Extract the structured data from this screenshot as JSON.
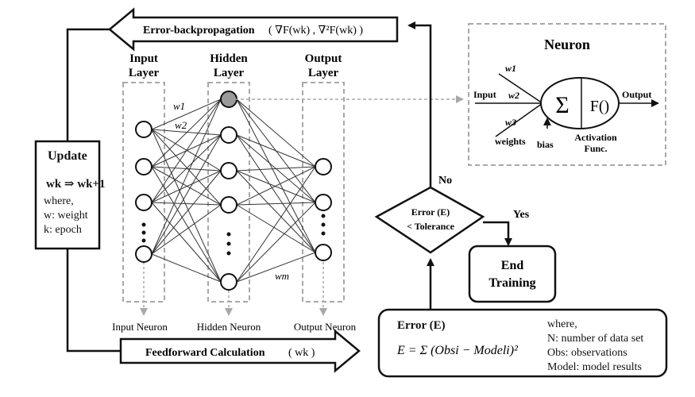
{
  "backprop": {
    "label": "Error-backpropagation",
    "formula": "( ∇F(wk) , ∇²F(wk) )"
  },
  "feedforward": {
    "label": "Feedforward Calculation",
    "formula": "( wk )"
  },
  "layers": {
    "input": [
      "Input",
      "Layer"
    ],
    "hidden": [
      "Hidden",
      "Layer"
    ],
    "output": [
      "Output",
      "Layer"
    ]
  },
  "neuron_labels": {
    "input": "Input Neuron",
    "hidden": "Hidden Neuron",
    "output": "Output Neuron"
  },
  "weights": {
    "w1": "w1",
    "w2": "w2",
    "wm": "wm"
  },
  "update": {
    "title": "Update",
    "rule": "wk ⇒ wk+1",
    "where": "where,",
    "w_def": "w: weight",
    "k_def": "k: epoch"
  },
  "neuron_box": {
    "title": "Neuron",
    "input": "Input",
    "output": "Output",
    "w1": "w1",
    "w2": "w2",
    "w3": "w3",
    "weights": "weights",
    "bias": "bias",
    "sum_symbol": "Σ",
    "activation_symbol": "F()",
    "activation_label": [
      "Activation",
      "Func."
    ]
  },
  "decision": {
    "line1": "Error (E)",
    "line2": "< Tolerance",
    "no": "No",
    "yes": "Yes"
  },
  "end_box": {
    "line1": "End",
    "line2": "Training"
  },
  "error_box": {
    "title": "Error (E)",
    "formula": "E = Σ (Obsi − Modeli)²",
    "where": "where,",
    "n_def": "N: number of data set",
    "obs_def": "Obs: observations",
    "model_def": "Model: model results"
  },
  "colors": {
    "dashed": "#a8a8a8",
    "highlight_node": "#9a9a9a",
    "line": "#111111"
  }
}
